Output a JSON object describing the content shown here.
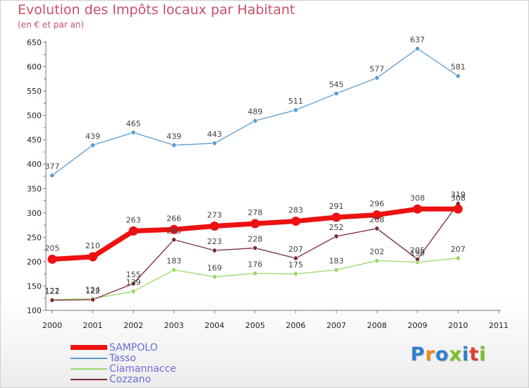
{
  "page": {
    "title": "Evolution des Impôts locaux par Habitant",
    "subtitle": "(en € et par an)"
  },
  "logo": {
    "text": "Proxiti",
    "colors": [
      "#2f7fd0",
      "#f08a1c",
      "#2f7fd0",
      "#7bbf2a",
      "#2f7fd0",
      "#e23b2e",
      "#7bbf2a"
    ]
  },
  "chart_data": {
    "type": "line",
    "title": "Evolution des Impôts locaux par Habitant",
    "subtitle": "(en € et par an)",
    "xlabel": "",
    "ylabel": "",
    "x_ticks": [
      "2000",
      "2001",
      "2002",
      "2003",
      "2004",
      "2005",
      "2006",
      "2007",
      "2008",
      "2009",
      "2010",
      "2011"
    ],
    "xlim": [
      2000,
      2011
    ],
    "y_ticks": [
      "100",
      "150",
      "200",
      "250",
      "300",
      "350",
      "400",
      "450",
      "500",
      "550",
      "600",
      "650"
    ],
    "ylim": [
      100,
      650
    ],
    "grid": false,
    "legend_position": "bottom-left",
    "x": [
      2000,
      2001,
      2002,
      2003,
      2004,
      2005,
      2006,
      2007,
      2008,
      2009,
      2010
    ],
    "series": [
      {
        "name": "SAMPOLO",
        "color": "#ee1111",
        "values": [
          205,
          210,
          263,
          266,
          273,
          278,
          283,
          291,
          296,
          308,
          308
        ],
        "labels": [
          "205",
          "210",
          "263",
          "266",
          "273",
          "278",
          "283",
          "291",
          "296",
          "308",
          "308"
        ]
      },
      {
        "name": "Tasso",
        "color": "#5b9bd0",
        "values": [
          377,
          439,
          465,
          439,
          443,
          489,
          511,
          545,
          577,
          637,
          581
        ],
        "labels": [
          "377",
          "439",
          "465",
          "439",
          "443",
          "489",
          "511",
          "545",
          "577",
          "637",
          "581"
        ]
      },
      {
        "name": "Ciamannacce",
        "color": "#9ad86a",
        "values": [
          122,
          124,
          139,
          183,
          169,
          176,
          175,
          183,
          202,
          199,
          207
        ],
        "labels": [
          "122",
          "124",
          "139",
          "183",
          "169",
          "176",
          "175",
          "183",
          "202",
          "199",
          "207"
        ]
      },
      {
        "name": "Cozzano",
        "color": "#7a2a33",
        "values": [
          121,
          122,
          155,
          245,
          223,
          228,
          207,
          252,
          268,
          205,
          319
        ],
        "labels": [
          "121",
          "122",
          "155",
          "245",
          "223",
          "228",
          "207",
          "252",
          "268",
          "205",
          "319"
        ]
      }
    ]
  }
}
